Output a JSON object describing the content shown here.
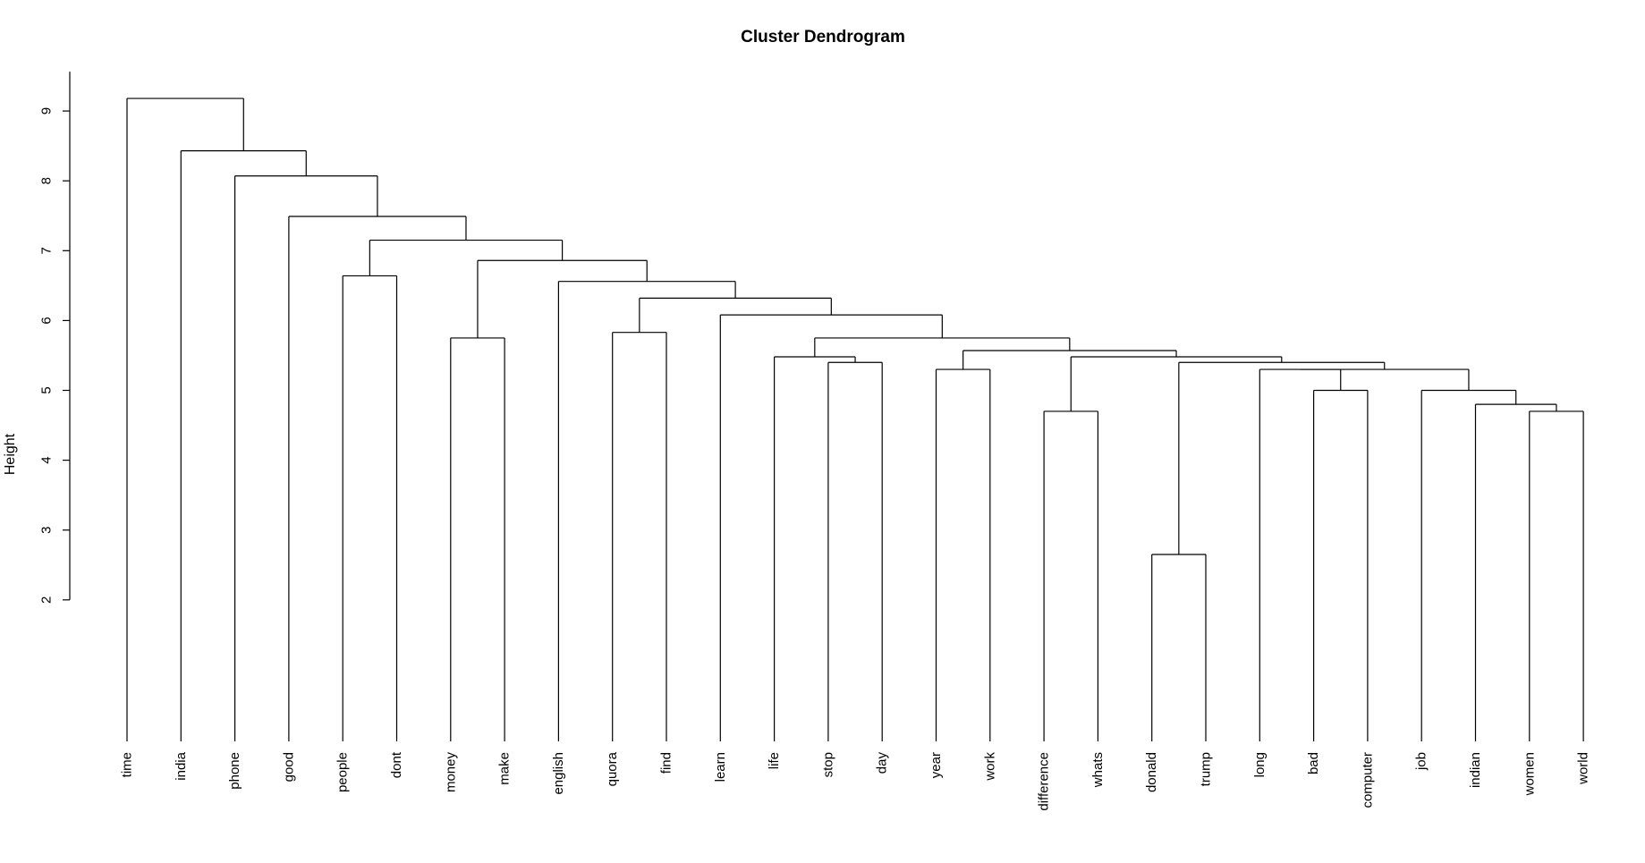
{
  "chart_data": {
    "type": "dendrogram",
    "title": "Cluster Dendrogram",
    "xlabel": "",
    "ylabel": "Height",
    "yticks": [
      2,
      3,
      4,
      5,
      6,
      7,
      8,
      9
    ],
    "ylim": [
      0,
      9.6
    ],
    "leaves": [
      "time",
      "india",
      "phone",
      "good",
      "people",
      "dont",
      "money",
      "make",
      "english",
      "quora",
      "find",
      "learn",
      "life",
      "stop",
      "day",
      "year",
      "work",
      "difference",
      "whats",
      "donald",
      "trump",
      "long",
      "bad",
      "computer",
      "job",
      "indian",
      "women",
      "world"
    ],
    "merges": [
      {
        "a": "donald",
        "b": "trump",
        "height": 2.65
      },
      {
        "a": "women",
        "b": "world",
        "height": 4.7
      },
      {
        "a": "difference",
        "b": "whats",
        "height": 4.7
      },
      {
        "a": "indian",
        "b": "women+world",
        "height": 4.8
      },
      {
        "a": "bad",
        "b": "computer",
        "height": 5.0
      },
      {
        "a": "job",
        "b": "indian+women+world",
        "height": 5.0
      },
      {
        "a": "long",
        "b": "bad+computer",
        "height": 5.3
      },
      {
        "a": "year",
        "b": "work",
        "height": 5.3
      },
      {
        "a": "long+bad+computer",
        "b": "job+indian+women+world",
        "height": 5.3
      },
      {
        "a": "stop",
        "b": "day",
        "height": 5.4
      },
      {
        "a": "donald+trump",
        "b": "long..world",
        "height": 5.4
      },
      {
        "a": "life",
        "b": "stop+day",
        "height": 5.48
      },
      {
        "a": "difference+whats",
        "b": "donald..world",
        "height": 5.48
      },
      {
        "a": "year+work",
        "b": "difference..world",
        "height": 5.57
      },
      {
        "a": "money",
        "b": "make",
        "height": 5.75
      },
      {
        "a": "life+stop+day",
        "b": "year..world",
        "height": 5.75
      },
      {
        "a": "quora",
        "b": "find",
        "height": 5.83
      },
      {
        "a": "learn",
        "b": "life..world",
        "height": 6.08
      },
      {
        "a": "quora+find",
        "b": "learn..world",
        "height": 6.32
      },
      {
        "a": "english",
        "b": "quora..world",
        "height": 6.56
      },
      {
        "a": "people",
        "b": "dont",
        "height": 6.64
      },
      {
        "a": "money+make",
        "b": "english..world",
        "height": 6.86
      },
      {
        "a": "people+dont",
        "b": "money..world",
        "height": 7.15
      },
      {
        "a": "good",
        "b": "people..world",
        "height": 7.49
      },
      {
        "a": "phone",
        "b": "good..world",
        "height": 8.07
      },
      {
        "a": "india",
        "b": "phone..world",
        "height": 8.43
      },
      {
        "a": "time",
        "b": "india..world",
        "height": 9.18
      }
    ]
  }
}
